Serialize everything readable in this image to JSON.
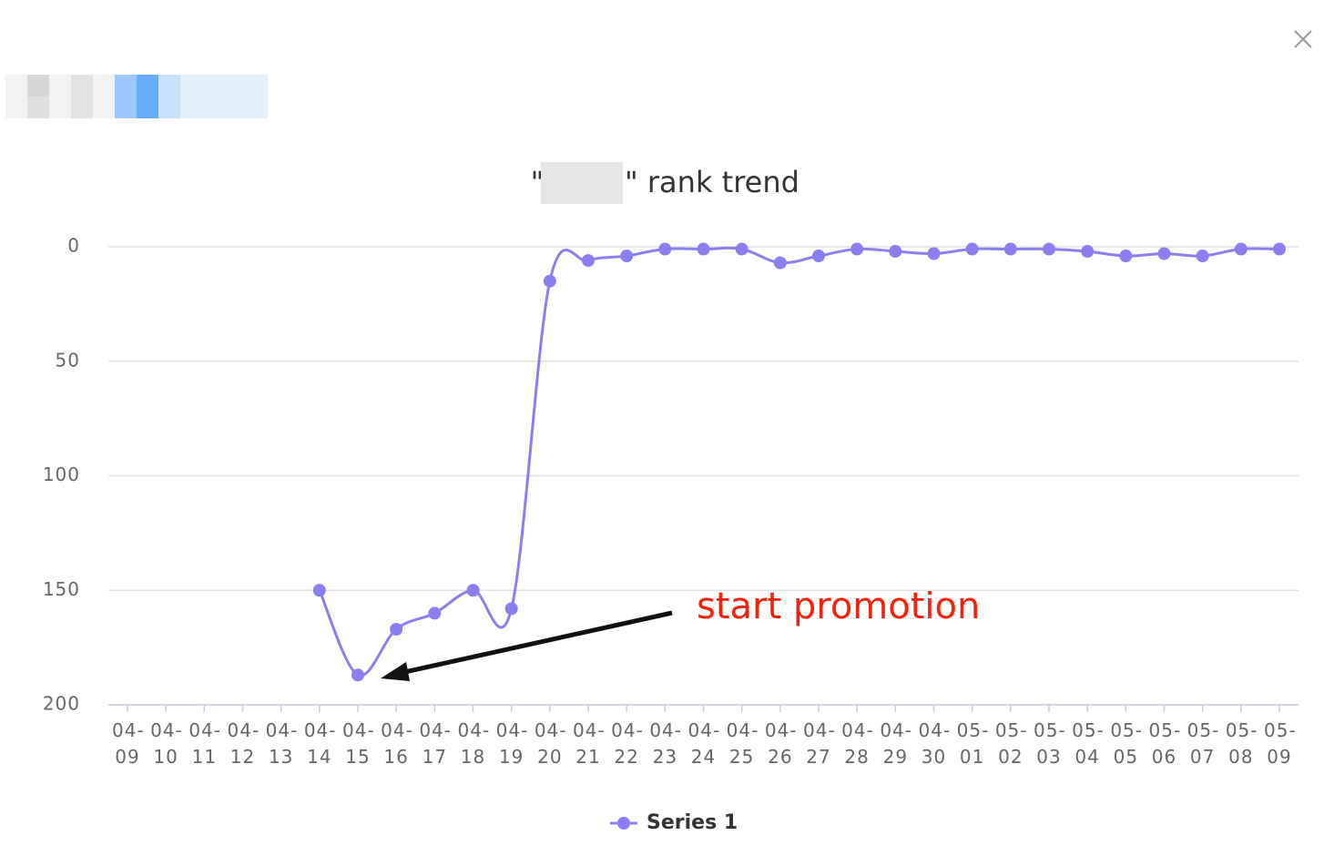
{
  "chart_data": {
    "type": "line",
    "title_open": "\"",
    "title": "\" rank trend",
    "categories": [
      "04-09",
      "04-10",
      "04-11",
      "04-12",
      "04-13",
      "04-14",
      "04-15",
      "04-16",
      "04-17",
      "04-18",
      "04-19",
      "04-20",
      "04-21",
      "04-22",
      "04-23",
      "04-24",
      "04-25",
      "04-26",
      "04-27",
      "04-28",
      "04-29",
      "04-30",
      "05-01",
      "05-02",
      "05-03",
      "05-04",
      "05-05",
      "05-06",
      "05-07",
      "05-08",
      "05-09"
    ],
    "series": [
      {
        "name": "Series 1",
        "color": "#8a7ff0",
        "values": [
          null,
          null,
          null,
          null,
          null,
          150,
          187,
          167,
          160,
          150,
          158,
          15,
          6,
          4,
          1,
          1,
          1,
          7,
          4,
          1,
          2,
          3,
          1,
          1,
          1,
          2,
          4,
          3,
          4,
          1,
          1
        ]
      }
    ],
    "ylim": [
      0,
      200
    ],
    "yticks": [
      0,
      50,
      100,
      150,
      200
    ],
    "y_inverse": true,
    "grid": true,
    "smooth": true,
    "legend": "bottom",
    "annotation": "start promotion"
  }
}
